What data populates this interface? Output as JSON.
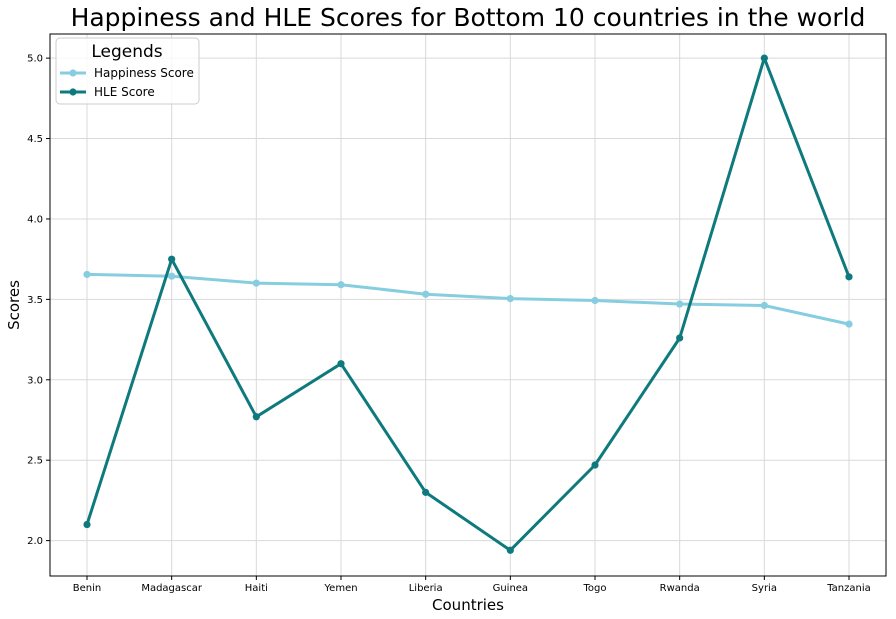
{
  "chart_data": {
    "type": "line",
    "title": "Happiness and HLE Scores for Bottom 10 countries in the world",
    "xlabel": "Countries",
    "ylabel": "Scores",
    "categories": [
      "Benin",
      "Madagascar",
      "Haiti",
      "Yemen",
      "Liberia",
      "Guinea",
      "Togo",
      "Rwanda",
      "Syria",
      "Tanzania"
    ],
    "ylim": [
      1.78,
      5.15
    ],
    "yticks": [
      "2.0",
      "2.5",
      "3.0",
      "3.5",
      "4.0",
      "4.5",
      "5.0"
    ],
    "grid": true,
    "legend": {
      "title": "Legends",
      "placement": "top-left"
    },
    "series": [
      {
        "name": "Happiness Score",
        "color": "#87cde0",
        "values": [
          3.655,
          3.644,
          3.601,
          3.591,
          3.532,
          3.505,
          3.493,
          3.471,
          3.462,
          3.346
        ]
      },
      {
        "name": "HLE Score",
        "color": "#0e7a7d",
        "values": [
          2.1,
          3.75,
          2.77,
          3.1,
          2.3,
          1.94,
          2.47,
          3.26,
          5.0,
          3.64
        ]
      }
    ]
  }
}
